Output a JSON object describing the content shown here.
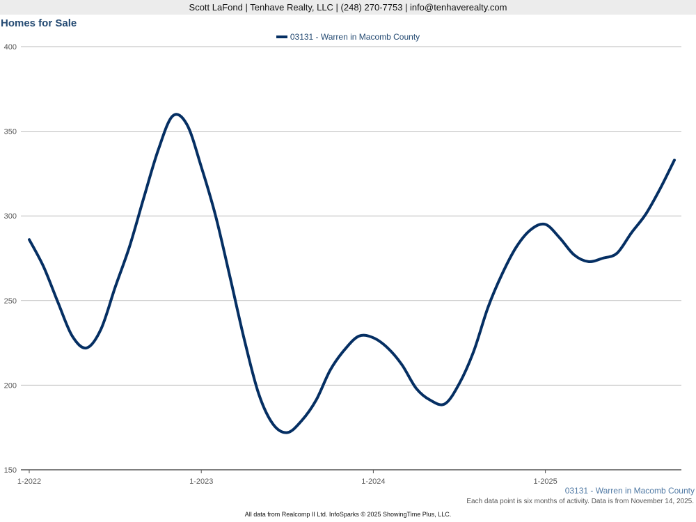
{
  "header": {
    "contact": "Scott LaFond | Tenhave Realty, LLC | (248) 270-7753 | info@tenhaverealty.com"
  },
  "footer": {
    "series_caption": "03131 - Warren in Macomb County",
    "note": "Each data point is six months of activity. Data is from November 14, 2025.",
    "credits": "All data from Realcomp II Ltd. InfoSparks © 2025 ShowingTime Plus, LLC."
  },
  "chart_data": {
    "type": "line",
    "title": "Homes for Sale",
    "xlabel": "",
    "ylabel": "",
    "ylim": [
      150,
      400
    ],
    "yticks": [
      150,
      200,
      250,
      300,
      350,
      400
    ],
    "xticks": [
      "1-2022",
      "1-2023",
      "1-2024",
      "1-2025"
    ],
    "grid": true,
    "legend_position": "top-center",
    "colors": {
      "series": "#052f63",
      "grid": "#bbbbbb",
      "axis": "#555555"
    },
    "x": [
      "2022-01",
      "2022-02",
      "2022-03",
      "2022-04",
      "2022-05",
      "2022-06",
      "2022-07",
      "2022-08",
      "2022-09",
      "2022-10",
      "2022-11",
      "2022-12",
      "2023-01",
      "2023-02",
      "2023-03",
      "2023-04",
      "2023-05",
      "2023-06",
      "2023-07",
      "2023-08",
      "2023-09",
      "2023-10",
      "2023-11",
      "2023-12",
      "2024-01",
      "2024-02",
      "2024-03",
      "2024-04",
      "2024-05",
      "2024-06",
      "2024-07",
      "2024-08",
      "2024-09",
      "2024-10",
      "2024-11",
      "2024-12",
      "2025-01",
      "2025-02",
      "2025-03",
      "2025-04",
      "2025-05",
      "2025-06",
      "2025-07",
      "2025-08",
      "2025-09",
      "2025-10"
    ],
    "series": [
      {
        "name": "03131 - Warren in Macomb County",
        "values": [
          286,
          270,
          249,
          229,
          222,
          233,
          258,
          282,
          311,
          339,
          359,
          354,
          329,
          300,
          264,
          227,
          195,
          177,
          172,
          179,
          191,
          209,
          221,
          229,
          228,
          222,
          212,
          198,
          191,
          189,
          201,
          220,
          246,
          266,
          282,
          292,
          295,
          287,
          277,
          273,
          275,
          278,
          290,
          301,
          316,
          333
        ]
      }
    ]
  }
}
